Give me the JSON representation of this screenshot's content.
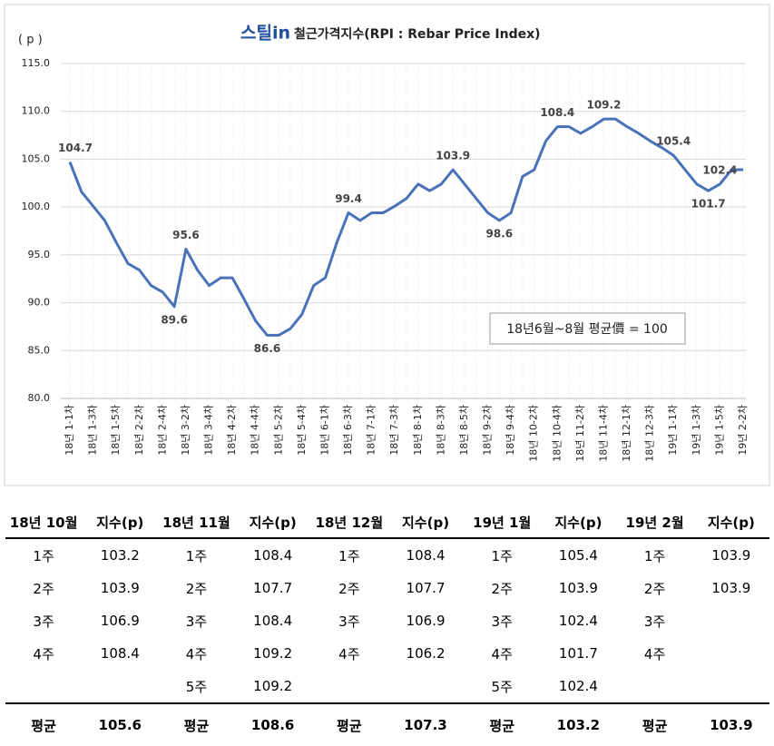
{
  "chart_data": {
    "type": "line",
    "logo": "스틸in",
    "title": "철근가격지수(RPI : Rebar Price Index)",
    "y_axis_label": "( p )",
    "annotation": "18년6월~8월 평균價 = 100",
    "categories": [
      "18년 1-1차",
      null,
      "18년 1-3차",
      null,
      "18년 1-5차",
      null,
      "18년 2-2차",
      null,
      "18년 2-4차",
      null,
      "18년 3-2차",
      null,
      "18년 3-4차",
      null,
      "18년 4-2차",
      null,
      "18년 4-4차",
      null,
      "18년 5-2차",
      null,
      "18년 5-4차",
      null,
      "18년 6-1차",
      null,
      "18년 6-3차",
      null,
      "18년 7-1차",
      null,
      "18년 7-3차",
      null,
      "18년 8-1차",
      null,
      "18년 8-3차",
      null,
      "18년 8-5차",
      null,
      "18년 9-2차",
      null,
      "18년 9-4차",
      null,
      "18년 10-2차",
      null,
      "18년 10-4차",
      null,
      "18년 11-2차",
      null,
      "18년 11-4차",
      null,
      "18년 12-1차",
      null,
      "18년 12-3차",
      null,
      "19년 1-1차",
      null,
      "19년 1-3차",
      null,
      "19년 1-5차",
      null,
      "19년 2-2차"
    ],
    "series": [
      {
        "name": "철근가격지수",
        "color": "#4a72b8",
        "values": [
          104.7,
          101.6,
          100.1,
          98.6,
          96.3,
          94.1,
          93.4,
          91.8,
          91.1,
          89.6,
          95.6,
          93.4,
          91.8,
          92.6,
          92.6,
          90.4,
          88.1,
          86.6,
          86.6,
          87.3,
          88.8,
          91.8,
          92.6,
          96.3,
          99.4,
          98.6,
          99.4,
          99.4,
          100.1,
          100.9,
          102.4,
          101.7,
          102.4,
          103.9,
          102.4,
          100.9,
          99.4,
          98.6,
          99.4,
          103.2,
          103.9,
          106.9,
          108.4,
          108.4,
          107.7,
          108.4,
          109.2,
          109.2,
          108.4,
          107.7,
          106.9,
          106.2,
          105.4,
          103.9,
          102.4,
          101.7,
          102.4,
          103.9,
          103.9
        ],
        "value_labels": [
          "104.7",
          null,
          null,
          null,
          null,
          null,
          null,
          null,
          null,
          "89.6",
          "95.6",
          null,
          null,
          null,
          null,
          null,
          null,
          "86.6",
          null,
          null,
          null,
          null,
          null,
          null,
          "99.4",
          null,
          null,
          null,
          null,
          null,
          null,
          null,
          null,
          "103.9",
          null,
          null,
          null,
          "98.6",
          null,
          null,
          null,
          null,
          "108.4",
          null,
          null,
          null,
          "109.2",
          null,
          null,
          null,
          null,
          null,
          "105.4",
          null,
          null,
          "101.7",
          "102.4",
          null,
          null
        ]
      }
    ],
    "ylim": [
      80,
      115
    ],
    "yticks": [
      {
        "value": 80,
        "label": "80.0"
      },
      {
        "value": 85,
        "label": "85.0"
      },
      {
        "value": 90,
        "label": "90.0"
      },
      {
        "value": 95,
        "label": "95.0"
      },
      {
        "value": 100,
        "label": "100.0"
      },
      {
        "value": 105,
        "label": "105.0"
      },
      {
        "value": 110,
        "label": "110.0"
      },
      {
        "value": 115,
        "label": "115.0"
      }
    ],
    "grid": true
  },
  "table": {
    "header": [
      "18년 10월",
      "지수(p)",
      "18년 11월",
      "지수(p)",
      "18년 12월",
      "지수(p)",
      "19년 1월",
      "지수(p)",
      "19년 2월",
      "지수(p)"
    ],
    "rows": [
      [
        "1주",
        "103.2",
        "1주",
        "108.4",
        "1주",
        "108.4",
        "1주",
        "105.4",
        "1주",
        "103.9"
      ],
      [
        "2주",
        "103.9",
        "2주",
        "107.7",
        "2주",
        "107.7",
        "2주",
        "103.9",
        "2주",
        "103.9"
      ],
      [
        "3주",
        "106.9",
        "3주",
        "108.4",
        "3주",
        "106.9",
        "3주",
        "102.4",
        "3주",
        null
      ],
      [
        "4주",
        "108.4",
        "4주",
        "109.2",
        "4주",
        "106.2",
        "4주",
        "101.7",
        "4주",
        null
      ],
      [
        null,
        null,
        "5주",
        "109.2",
        null,
        null,
        "5주",
        "102.4",
        null,
        null
      ]
    ],
    "average": [
      "평균",
      "105.6",
      "평균",
      "108.6",
      "평균",
      "107.3",
      "평균",
      "103.2",
      "평균",
      "103.9"
    ]
  }
}
